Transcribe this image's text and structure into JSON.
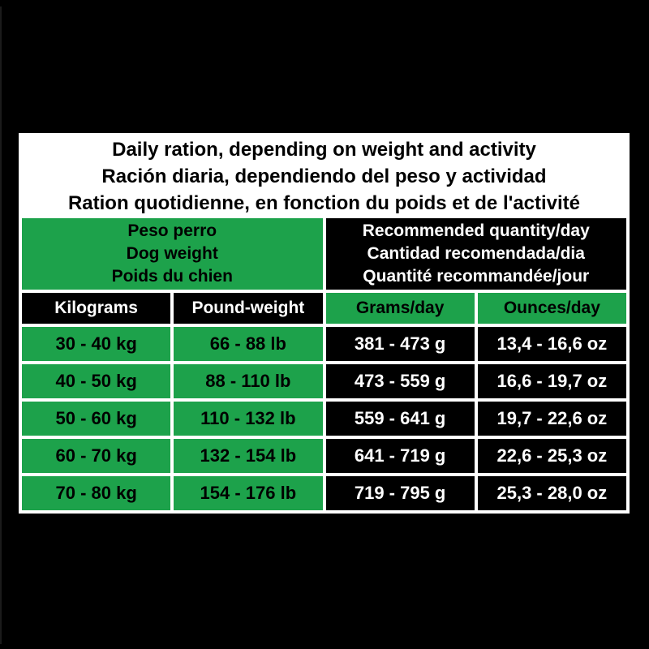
{
  "background_color": "#000000",
  "table": {
    "title_lines": [
      "Daily ration, depending on weight and activity",
      "Ración diaria, dependiendo del peso y actividad",
      "Ration quotidienne, en fonction du poids et de l'activité"
    ],
    "group_headers": {
      "left_lines": [
        "Peso perro",
        "Dog weight",
        "Poids du chien"
      ],
      "right_lines": [
        "Recommended quantity/day",
        "Cantidad recomendada/dia",
        "Quantité recommandée/jour"
      ]
    },
    "columns": [
      "Kilograms",
      "Pound-weight",
      "Grams/day",
      "Ounces/day"
    ],
    "rows": [
      [
        "30 - 40 kg",
        "66 - 88 lb",
        "381 - 473 g",
        "13,4 - 16,6 oz"
      ],
      [
        "40 - 50 kg",
        "88 - 110 lb",
        "473 - 559 g",
        "16,6 - 19,7 oz"
      ],
      [
        "50 - 60 kg",
        "110 - 132 lb",
        "559 - 641 g",
        "19,7 - 22,6 oz"
      ],
      [
        "60 - 70 kg",
        "132 - 154 lb",
        "641 - 719 g",
        "22,6 - 25,3 oz"
      ],
      [
        "70 - 80 kg",
        "154 - 176 lb",
        "719 - 795 g",
        "25,3 - 28,0 oz"
      ]
    ],
    "colors": {
      "green": "#1da24b",
      "black": "#000000",
      "white": "#ffffff"
    }
  }
}
